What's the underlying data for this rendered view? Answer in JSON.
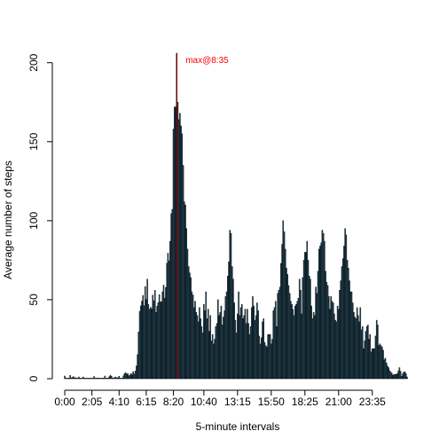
{
  "chart_data": {
    "type": "bar",
    "title": "",
    "xlabel": "5-minute intervals",
    "ylabel": "Average number of steps",
    "ylim": [
      0,
      206
    ],
    "x_tick_labels": [
      "0:00",
      "2:05",
      "4:10",
      "6:15",
      "8:20",
      "10:40",
      "13:15",
      "15:50",
      "18:25",
      "21:00",
      "23:35"
    ],
    "x_tick_bins": [
      0,
      25,
      50,
      75,
      100,
      128,
      159,
      190,
      221,
      252,
      283
    ],
    "y_ticks": [
      0,
      50,
      100,
      150,
      200
    ],
    "bar_color": "#28546a",
    "bar_edge_color": "#000000",
    "annotation": {
      "text": "max@8:35",
      "bin": 103,
      "value": 206,
      "color": "#ff0000"
    },
    "series": [
      {
        "values": [
          1.7,
          0.3,
          0.1,
          0.2,
          0.1,
          2.1,
          0.5,
          0.9,
          1.3,
          0.2,
          0.7,
          0.2,
          0.1,
          1.1,
          0,
          0,
          0.2,
          1.1,
          0,
          0,
          0.1,
          0,
          0,
          0,
          0,
          0,
          0.3,
          1.4,
          0,
          0,
          0.5,
          0,
          0,
          0,
          0,
          0.4,
          0.3,
          1.7,
          0.1,
          0.4,
          0,
          1.3,
          2.2,
          1.5,
          0.3,
          0,
          0.8,
          1.1,
          0,
          0.6,
          1.5,
          0,
          0.2,
          0,
          1.8,
          3.2,
          3.8,
          2.9,
          3.2,
          1.8,
          2.4,
          3.3,
          2.5,
          4.5,
          3.1,
          4.9,
          8.1,
          15.2,
          29.6,
          42.7,
          46.1,
          49.1,
          52.7,
          46.2,
          58.3,
          50.2,
          63,
          47,
          44,
          45.2,
          44.1,
          52.9,
          49.4,
          55.9,
          42,
          45.9,
          48.2,
          53.2,
          48.5,
          48.8,
          55,
          59.2,
          51,
          57.8,
          73.1,
          79.4,
          74.6,
          87,
          104.5,
          107.2,
          158,
          172,
          172,
          206,
          175,
          164,
          168,
          160,
          155,
          135,
          112,
          110,
          95,
          82,
          71,
          67,
          64,
          55,
          53,
          45,
          49,
          42,
          40,
          36,
          45,
          38,
          33,
          29,
          47,
          43,
          55,
          38,
          44,
          30,
          40,
          24,
          28,
          22,
          25,
          33,
          35,
          50,
          40,
          42,
          46,
          34,
          39,
          43,
          52,
          55,
          65,
          74,
          94,
          92,
          71,
          63,
          48,
          37,
          29,
          41,
          55,
          40,
          45,
          47,
          38,
          40,
          44,
          35,
          44,
          35,
          28,
          33,
          45,
          52,
          46,
          37,
          40,
          48,
          43,
          27,
          22,
          26,
          36,
          38,
          23,
          21,
          20,
          28,
          28,
          28,
          22,
          25,
          43,
          45,
          49,
          33,
          54,
          56,
          58,
          73,
          85,
          100,
          93,
          82,
          70,
          66,
          59,
          54,
          49,
          47,
          44,
          40,
          46,
          47,
          49,
          51,
          63,
          56,
          41,
          64,
          75,
          80,
          80,
          87,
          75,
          65,
          63,
          46,
          38,
          42,
          40,
          58,
          54,
          68,
          82,
          84,
          86,
          94,
          92,
          87,
          68,
          61,
          59,
          52,
          44,
          52,
          49,
          48,
          41,
          37,
          36,
          46,
          44,
          56,
          62,
          71,
          76,
          84,
          95,
          91,
          75,
          70,
          62,
          55,
          55,
          48,
          42,
          39,
          38,
          45,
          40,
          36,
          45,
          31,
          33,
          19,
          24,
          30,
          33,
          34,
          25,
          28,
          17,
          19,
          19,
          19,
          27,
          37,
          34,
          21,
          22,
          21,
          20,
          18,
          12,
          13,
          10,
          8,
          7,
          5.1,
          4.2,
          3.5,
          2.1,
          2.7,
          2.8,
          2.8,
          3.2,
          5,
          7,
          4.7,
          1.5,
          3.1,
          4.2,
          4.4,
          3.2,
          1.1
        ]
      }
    ]
  }
}
